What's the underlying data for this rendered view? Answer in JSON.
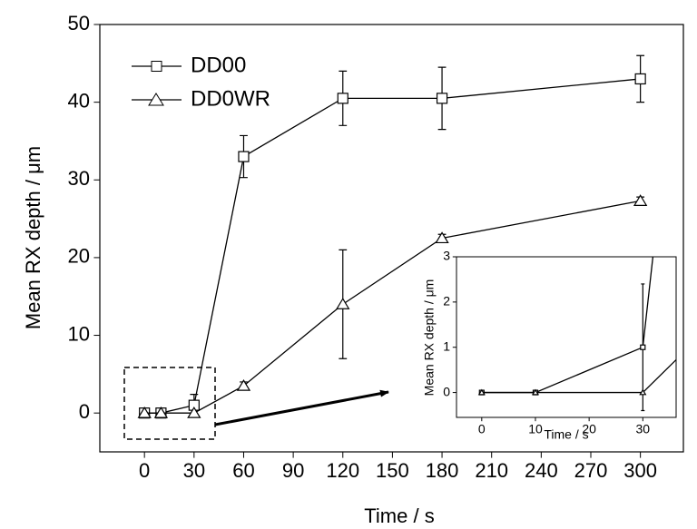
{
  "chart_data": {
    "type": "line",
    "xlabel": "Time / s",
    "ylabel": "Mean RX depth / μm",
    "x": [
      0,
      10,
      30,
      60,
      120,
      180,
      300
    ],
    "xlim": [
      -27,
      326
    ],
    "ylim": [
      -5,
      50
    ],
    "xticks": [
      0,
      30,
      60,
      90,
      120,
      150,
      180,
      210,
      240,
      270,
      300
    ],
    "yticks": [
      0,
      10,
      20,
      30,
      40,
      50
    ],
    "legend": "upper left",
    "series": [
      {
        "name": "DD00",
        "color": "#000000",
        "marker": "square",
        "values": [
          0,
          0,
          1,
          33,
          40.5,
          40.5,
          43
        ],
        "errors": [
          0,
          0,
          1.4,
          2.7,
          3.5,
          4,
          3
        ]
      },
      {
        "name": "DD0WR",
        "color": "#000000",
        "marker": "triangle",
        "values": [
          0,
          0,
          0,
          3.5,
          14,
          22.5,
          27.3
        ],
        "errors": [
          0,
          0,
          0,
          0.5,
          7,
          0.5,
          0.5
        ]
      }
    ],
    "inset": {
      "xlabel": "Time / s",
      "ylabel": "Mean RX depth / μm",
      "xlim": [
        -4.7,
        36.2
      ],
      "ylim": [
        -0.55,
        3
      ],
      "xticks": [
        0,
        10,
        20,
        30
      ],
      "yticks": [
        0,
        1,
        2,
        3
      ]
    }
  }
}
